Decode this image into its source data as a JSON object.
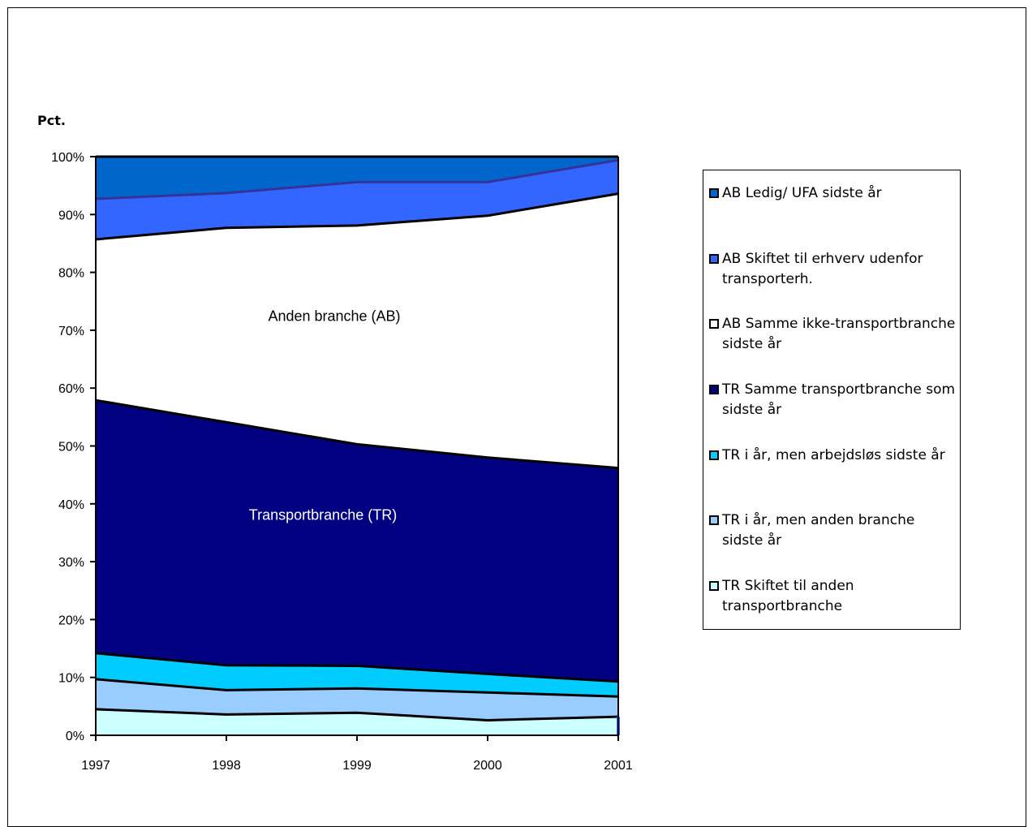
{
  "chart_data": {
    "type": "area",
    "stacked": true,
    "ylabel": "Pct.",
    "ylim": [
      0,
      100
    ],
    "y_unit": "%",
    "y_ticks": [
      "0%",
      "10%",
      "20%",
      "30%",
      "40%",
      "50%",
      "60%",
      "70%",
      "80%",
      "90%",
      "100%"
    ],
    "categories": [
      "1997",
      "1998",
      "1999",
      "2000",
      "2001"
    ],
    "legend_position": "right",
    "annotations": [
      "Anden branche (AB)",
      "Transportbranche (TR)"
    ],
    "series": [
      {
        "name": "TR Skiftet til anden transportbranche",
        "values": [
          4.5,
          3.6,
          3.9,
          2.6,
          3.2
        ],
        "color": "#ccffff"
      },
      {
        "name": "TR i år, men anden branche sidste år",
        "values": [
          5.2,
          4.2,
          4.2,
          4.8,
          3.5
        ],
        "color": "#99ccff"
      },
      {
        "name": "TR i år, men arbejdsløs sidste år",
        "values": [
          4.5,
          4.3,
          3.9,
          3.2,
          2.6
        ],
        "color": "#00ccff"
      },
      {
        "name": "TR Samme transportbranche som sidste år",
        "values": [
          43.7,
          42.0,
          38.3,
          37.4,
          36.9
        ],
        "color": "#000080"
      },
      {
        "name": "AB Samme ikke-transportbranche sidste år",
        "values": [
          27.8,
          33.6,
          37.8,
          41.8,
          47.4
        ],
        "color": "#ffffff"
      },
      {
        "name": "AB Skiftet til erhverv udenfor transporterh.",
        "values": [
          7.0,
          6.0,
          7.5,
          5.8,
          5.8
        ],
        "color": "#3366ff"
      },
      {
        "name": "AB Ledig/ UFA sidste år",
        "values": [
          7.3,
          6.3,
          4.4,
          4.4,
          0.6
        ],
        "color": "#0066cc"
      }
    ]
  },
  "legend": {
    "items": [
      {
        "label": "AB Ledig/ UFA sidste år",
        "color": "#0066cc"
      },
      {
        "label": "AB Skiftet til erhverv udenfor transporterh.",
        "color": "#3366ff"
      },
      {
        "label": "AB Samme ikke-transportbranche sidste år",
        "color": "#ffffff"
      },
      {
        "label": "TR Samme transportbranche som sidste år",
        "color": "#000080"
      },
      {
        "label": "TR i år, men arbejdsløs sidste år",
        "color": "#00ccff"
      },
      {
        "label": "TR i år, men anden branche sidste år",
        "color": "#99ccff"
      },
      {
        "label": "TR Skiftet til anden transportbranche",
        "color": "#ccffff"
      }
    ]
  }
}
